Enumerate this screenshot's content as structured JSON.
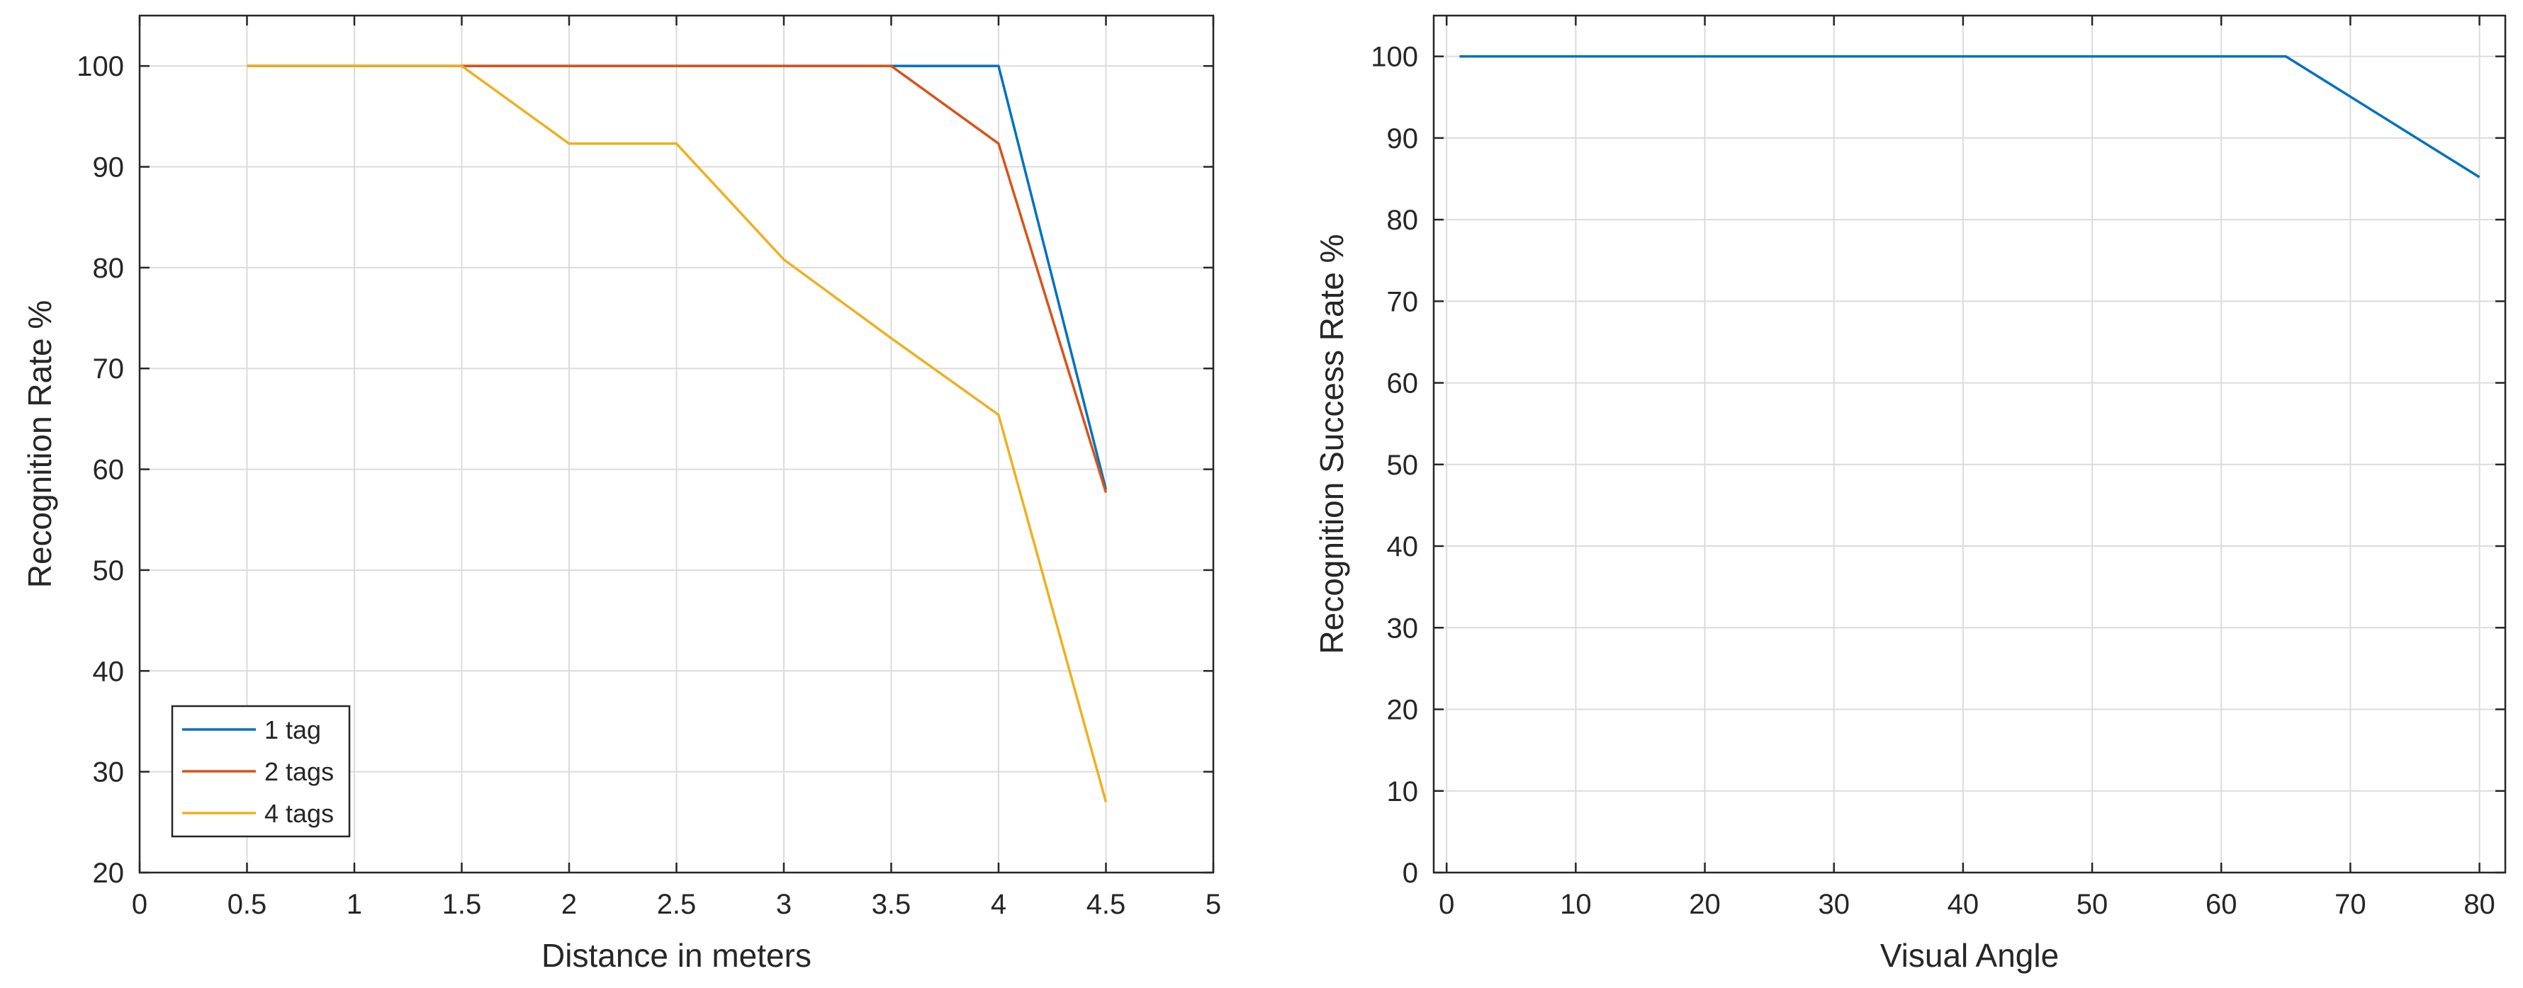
{
  "colors": {
    "blue": "#0072BD",
    "orange": "#D95319",
    "yellow": "#EDB120"
  },
  "chart_data": [
    {
      "type": "line",
      "title": "",
      "xlabel": "Distance in meters",
      "ylabel": "Recognition Rate %",
      "xlim": [
        0,
        5
      ],
      "ylim": [
        20,
        105
      ],
      "xticks": [
        0,
        0.5,
        1,
        1.5,
        2,
        2.5,
        3,
        3.5,
        4,
        4.5,
        5
      ],
      "xtick_labels": [
        "0",
        "0.5",
        "1",
        "1.5",
        "2",
        "2.5",
        "3",
        "3.5",
        "4",
        "4.5",
        "5"
      ],
      "yticks": [
        20,
        30,
        40,
        50,
        60,
        70,
        80,
        90,
        100
      ],
      "ytick_labels": [
        "20",
        "30",
        "40",
        "50",
        "60",
        "70",
        "80",
        "90",
        "100"
      ],
      "grid": true,
      "legend_position": "bottom-left",
      "series": [
        {
          "name": "1 tag",
          "color": "#0072BD",
          "x": [
            0.5,
            1,
            1.5,
            2,
            2.5,
            3,
            3.5,
            4,
            4.5
          ],
          "y": [
            100,
            100,
            100,
            100,
            100,
            100,
            100,
            100,
            58
          ]
        },
        {
          "name": "2 tags",
          "color": "#D95319",
          "x": [
            0.5,
            1,
            1.5,
            2,
            2.5,
            3,
            3.5,
            4,
            4.5
          ],
          "y": [
            100,
            100,
            100,
            100,
            100,
            100,
            100,
            92.3,
            57.7
          ]
        },
        {
          "name": "4 tags",
          "color": "#EDB120",
          "x": [
            0.5,
            1,
            1.5,
            2,
            2.5,
            3,
            3.5,
            4,
            4.5
          ],
          "y": [
            100,
            100,
            100,
            92.3,
            92.3,
            80.8,
            73,
            65.4,
            27
          ]
        }
      ]
    },
    {
      "type": "line",
      "title": "",
      "xlabel": "Visual Angle",
      "ylabel": "Recognition Success Rate %",
      "xlim": [
        -1,
        82
      ],
      "ylim": [
        0,
        105
      ],
      "xticks": [
        0,
        10,
        20,
        30,
        40,
        50,
        60,
        70,
        80
      ],
      "xtick_labels": [
        "0",
        "10",
        "20",
        "30",
        "40",
        "50",
        "60",
        "70",
        "80"
      ],
      "yticks": [
        0,
        10,
        20,
        30,
        40,
        50,
        60,
        70,
        80,
        90,
        100
      ],
      "ytick_labels": [
        "0",
        "10",
        "20",
        "30",
        "40",
        "50",
        "60",
        "70",
        "80",
        "90",
        "100"
      ],
      "grid": true,
      "series": [
        {
          "name": "Recognition Success Rate",
          "color": "#0072BD",
          "x": [
            1,
            65,
            80
          ],
          "y": [
            100,
            100,
            85.2
          ]
        }
      ]
    }
  ]
}
